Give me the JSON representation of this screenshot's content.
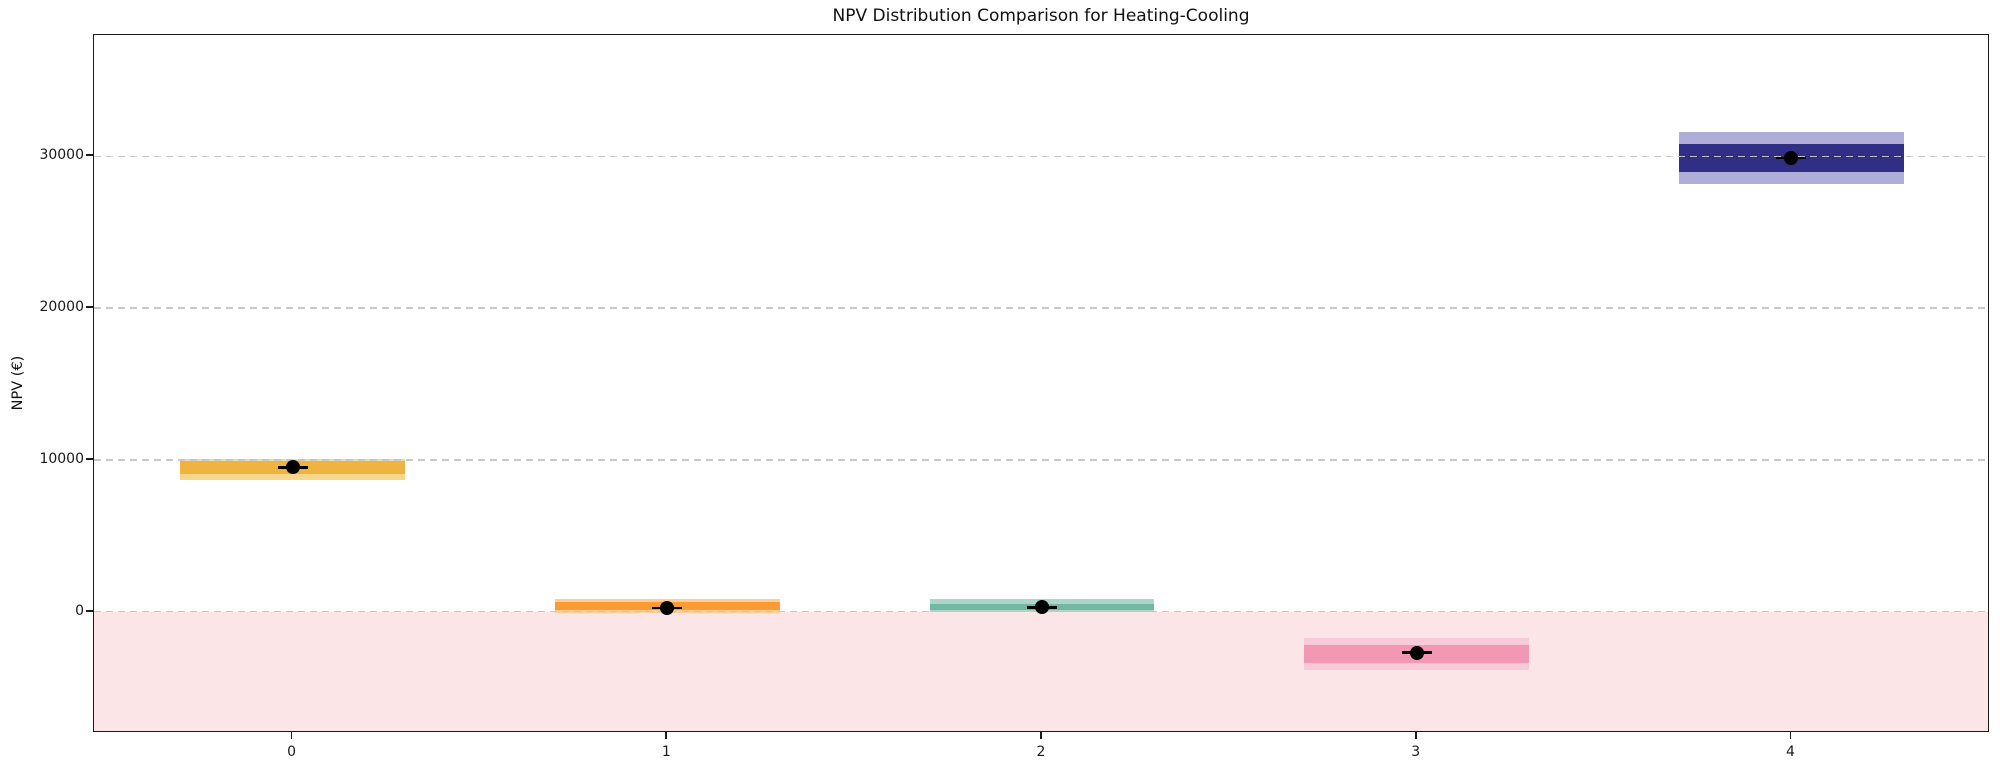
{
  "chart_data": {
    "type": "bar",
    "subtype": "range-band-distribution",
    "title": "NPV Distribution Comparison for Heating-Cooling",
    "ylabel": "NPV (€)",
    "xlabel": "",
    "categories": [
      "0",
      "1",
      "2",
      "3",
      "4"
    ],
    "ylim": [
      -8000,
      38000
    ],
    "xlim": [
      -0.53,
      4.53
    ],
    "yticks": [
      0,
      10000,
      20000,
      30000
    ],
    "ytick_labels": [
      "0",
      "10000",
      "20000",
      "30000"
    ],
    "grid": true,
    "grid_axis": "y",
    "grid_style": "dashed",
    "grid_color": "#c5c5c5",
    "band_width_units": 0.6,
    "negative_region": {
      "from": -8000,
      "to": 0,
      "color": "#fbe5e6"
    },
    "marker": {
      "shape": "circle",
      "color": "#000000",
      "note": "mean marker with short horizontal black line"
    },
    "series": [
      {
        "category": "0",
        "outer_range": [
          8650,
          10050
        ],
        "inner_range": [
          9050,
          9900
        ],
        "mean": 9500,
        "color_inner": "#efb43f",
        "color_outer": "#f7d78c"
      },
      {
        "category": "1",
        "outer_range": [
          -60,
          860
        ],
        "inner_range": [
          90,
          640
        ],
        "mean": 250,
        "color_inner": "#fc9a33",
        "color_outer": "#fdcf97"
      },
      {
        "category": "2",
        "outer_range": [
          -40,
          800
        ],
        "inner_range": [
          130,
          530
        ],
        "mean": 280,
        "color_inner": "#70b7a4",
        "color_outer": "#add5c9"
      },
      {
        "category": "3",
        "outer_range": [
          -3820,
          -1720
        ],
        "inner_range": [
          -3380,
          -2200
        ],
        "mean": -2700,
        "color_inner": "#f297b4",
        "color_outer": "#f9cada"
      },
      {
        "category": "4",
        "outer_range": [
          28200,
          31600
        ],
        "inner_range": [
          29000,
          30800
        ],
        "mean": 29900,
        "color_inner": "#302e85",
        "color_outer": "#afaed9"
      }
    ]
  }
}
